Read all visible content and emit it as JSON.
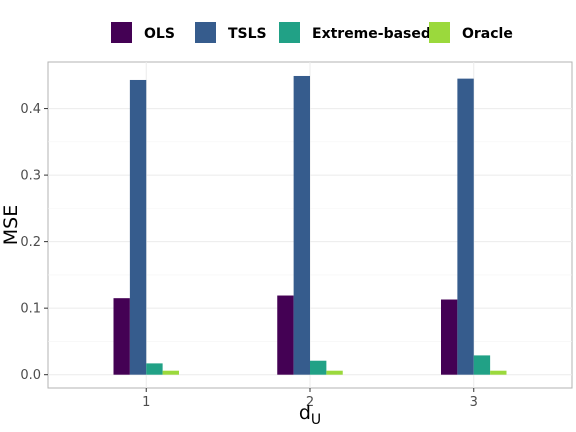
{
  "chart_data": {
    "type": "bar",
    "xlabel": "d",
    "xlabel_sub": "U",
    "ylabel": "MSE",
    "categories": [
      "1",
      "2",
      "3"
    ],
    "ylim": [
      -0.02,
      0.47
    ],
    "yticks": [
      0.0,
      0.1,
      0.2,
      0.3,
      0.4
    ],
    "ytick_labels": [
      "0.0",
      "0.1",
      "0.2",
      "0.3",
      "0.4"
    ],
    "grid": true,
    "legend_position": "top",
    "series": [
      {
        "name": "OLS",
        "color": "#440154",
        "values": [
          0.115,
          0.119,
          0.113
        ]
      },
      {
        "name": "TSLS",
        "color": "#365c8d",
        "values": [
          0.443,
          0.449,
          0.445
        ]
      },
      {
        "name": "Extreme-based",
        "color": "#21a186",
        "values": [
          0.017,
          0.021,
          0.029
        ]
      },
      {
        "name": "Oracle",
        "color": "#9bd93c",
        "values": [
          0.006,
          0.006,
          0.006
        ]
      }
    ]
  }
}
